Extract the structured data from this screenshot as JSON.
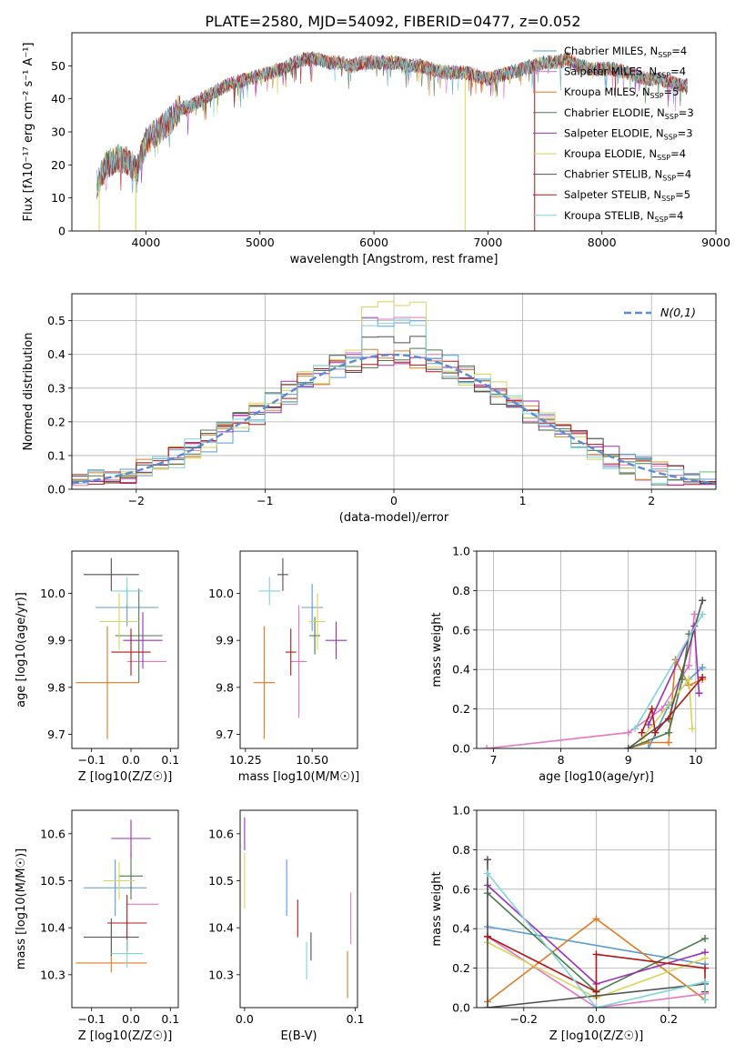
{
  "figure_title": "PLATE=2580, MJD=54092, FIBERID=0477, z=0.052",
  "colors": {
    "Chabrier MILES": "#5b9bd5",
    "Salpeter MILES": "#e377c2",
    "Kroupa MILES": "#e07b22",
    "Chabrier ELODIE": "#4c7a4c",
    "Salpeter ELODIE": "#9b30b5",
    "Kroupa ELODIE": "#d6d65a",
    "Chabrier STELIB": "#505050",
    "Salpeter STELIB": "#b01818",
    "Kroupa STELIB": "#7fd4da",
    "normal_fit": "#5b8ad6",
    "grid": "#b0b0b0"
  },
  "legend_entries": [
    {
      "key": "Chabrier MILES",
      "text": "Chabrier MILES, N",
      "sub": "SSP",
      "val": "=4"
    },
    {
      "key": "Salpeter MILES",
      "text": "Salpeter MILES, N",
      "sub": "SSP",
      "val": "=4"
    },
    {
      "key": "Kroupa MILES",
      "text": "Kroupa MILES, N",
      "sub": "SSP",
      "val": "=5"
    },
    {
      "key": "Chabrier ELODIE",
      "text": "Chabrier ELODIE, N",
      "sub": "SSP",
      "val": "=3"
    },
    {
      "key": "Salpeter ELODIE",
      "text": "Salpeter ELODIE, N",
      "sub": "SSP",
      "val": "=3"
    },
    {
      "key": "Kroupa ELODIE",
      "text": "Kroupa ELODIE, N",
      "sub": "SSP",
      "val": "=4"
    },
    {
      "key": "Chabrier STELIB",
      "text": "Chabrier STELIB, N",
      "sub": "SSP",
      "val": "=4"
    },
    {
      "key": "Salpeter STELIB",
      "text": "Salpeter STELIB, N",
      "sub": "SSP",
      "val": "=5"
    },
    {
      "key": "Kroupa STELIB",
      "text": "Kroupa STELIB, N",
      "sub": "SSP",
      "val": "=4"
    }
  ],
  "chart_data": [
    {
      "id": "spectrum",
      "type": "line",
      "xlabel": "wavelength [Angstrom, rest frame]",
      "ylabel": "Flux [fλ10⁻¹⁷ erg cm⁻² s⁻¹ A⁻¹]",
      "xlim": [
        3350,
        9000
      ],
      "ylim": [
        0,
        60
      ],
      "xticks": [
        4000,
        5000,
        6000,
        7000,
        8000,
        9000
      ],
      "yticks": [
        0,
        10,
        20,
        30,
        40,
        50
      ],
      "continuum": {
        "x": [
          3570,
          3650,
          3750,
          3850,
          3920,
          4000,
          4100,
          4200,
          4300,
          4400,
          4500,
          4600,
          4700,
          4800,
          4900,
          5000,
          5100,
          5200,
          5300,
          5400,
          5500,
          5600,
          5700,
          5800,
          5900,
          6000,
          6100,
          6200,
          6300,
          6400,
          6500,
          6600,
          6700,
          6800,
          6900,
          7000,
          7100,
          7200,
          7300,
          7400,
          7500,
          7600,
          7700,
          7800,
          7900,
          8000,
          8100,
          8200,
          8300,
          8400,
          8500,
          8600,
          8700,
          8750
        ],
        "y": [
          14,
          20,
          22,
          21,
          18,
          27,
          30,
          33,
          37,
          38,
          40,
          42,
          44,
          45,
          46,
          47,
          48,
          49,
          51,
          52,
          52,
          51,
          51,
          50,
          51,
          51,
          51,
          51,
          50,
          50,
          49,
          48,
          48,
          48,
          47,
          46,
          47,
          48,
          49,
          50,
          51,
          51,
          52,
          50,
          49,
          49,
          49,
          48,
          47,
          46,
          46,
          45,
          44,
          44
        ]
      },
      "spikes": [
        {
          "x": 3590,
          "y": 0,
          "series": "Kroupa ELODIE"
        },
        {
          "x": 3910,
          "y": 0,
          "series": "Kroupa ELODIE"
        },
        {
          "x": 6800,
          "y": 0,
          "series": "Kroupa ELODIE"
        },
        {
          "x": 7410,
          "y": 0,
          "series": "Salpeter STELIB"
        }
      ]
    },
    {
      "id": "residuals",
      "type": "histogram",
      "xlabel": "(data-model)/error",
      "ylabel": "Normed distribution",
      "xlim": [
        -2.5,
        2.5
      ],
      "ylim": [
        0,
        0.58
      ],
      "xticks": [
        -2,
        -1,
        0,
        1,
        2
      ],
      "yticks": [
        0,
        0.1,
        0.2,
        0.3,
        0.4,
        0.5
      ],
      "bin_width": 0.125,
      "legend": "N(0,1)",
      "peak_values": {
        "Chabrier MILES": 0.51,
        "Salpeter MILES": 0.53,
        "Kroupa ELODIE": 0.56,
        "Chabrier STELIB": 0.46,
        "Kroupa STELIB": 0.51
      }
    },
    {
      "id": "age_vs_Z",
      "type": "scatter-errorbar",
      "xlabel": "Z [log10(Z/Z☉)]",
      "ylabel": "age  [log10(age/yr)]",
      "xlim": [
        -0.15,
        0.12
      ],
      "ylim": [
        9.67,
        10.09
      ],
      "xticks": [
        -0.1,
        0.0,
        0.1
      ],
      "yticks": [
        9.7,
        9.8,
        9.9,
        10.0
      ],
      "points": [
        {
          "series": "Chabrier MILES",
          "x": -0.01,
          "y": 9.97,
          "xerr": 0.08,
          "yerr": 0.04
        },
        {
          "series": "Salpeter MILES",
          "x": 0.04,
          "y": 9.855,
          "xerr": 0.05,
          "yerr": 0.0
        },
        {
          "series": "Kroupa MILES",
          "x": -0.06,
          "y": 9.81,
          "xerr": 0.08,
          "yerr": 0.12
        },
        {
          "series": "Chabrier ELODIE",
          "x": 0.02,
          "y": 9.91,
          "xerr": 0.06,
          "yerr": 0.1
        },
        {
          "series": "Salpeter ELODIE",
          "x": 0.03,
          "y": 9.9,
          "xerr": 0.05,
          "yerr": 0.06
        },
        {
          "series": "Kroupa ELODIE",
          "x": -0.03,
          "y": 9.94,
          "xerr": 0.05,
          "yerr": 0.06
        },
        {
          "series": "Chabrier STELIB",
          "x": -0.05,
          "y": 10.04,
          "xerr": 0.07,
          "yerr": 0.035
        },
        {
          "series": "Salpeter STELIB",
          "x": 0.0,
          "y": 9.875,
          "xerr": 0.05,
          "yerr": 0.05
        },
        {
          "series": "Kroupa STELIB",
          "x": -0.01,
          "y": 10.005,
          "xerr": 0.04,
          "yerr": 0.03
        }
      ]
    },
    {
      "id": "age_vs_mass",
      "type": "scatter-errorbar",
      "xlabel": "mass [log10(M/M☉)]",
      "ylabel": "",
      "xlim": [
        10.23,
        10.67
      ],
      "ylim": [
        9.67,
        10.09
      ],
      "xticks": [
        10.25,
        10.5
      ],
      "yticks": [
        9.7,
        9.8,
        9.9,
        10.0
      ],
      "points": [
        {
          "series": "Chabrier MILES",
          "x": 10.5,
          "y": 9.97,
          "xerr": 0.04,
          "yerr": 0.05
        },
        {
          "series": "Salpeter MILES",
          "x": 10.45,
          "y": 9.855,
          "xerr": 0.03,
          "yerr": 0.12
        },
        {
          "series": "Kroupa MILES",
          "x": 10.32,
          "y": 9.81,
          "xerr": 0.04,
          "yerr": 0.12
        },
        {
          "series": "Chabrier ELODIE",
          "x": 10.51,
          "y": 9.91,
          "xerr": 0.02,
          "yerr": 0.04
        },
        {
          "series": "Salpeter ELODIE",
          "x": 10.59,
          "y": 9.9,
          "xerr": 0.04,
          "yerr": 0.04
        },
        {
          "series": "Kroupa ELODIE",
          "x": 10.52,
          "y": 9.94,
          "xerr": 0.03,
          "yerr": 0.06
        },
        {
          "series": "Chabrier STELIB",
          "x": 10.39,
          "y": 10.04,
          "xerr": 0.02,
          "yerr": 0.035
        },
        {
          "series": "Salpeter STELIB",
          "x": 10.42,
          "y": 9.875,
          "xerr": 0.02,
          "yerr": 0.05
        },
        {
          "series": "Kroupa STELIB",
          "x": 10.34,
          "y": 10.005,
          "xerr": 0.04,
          "yerr": 0.03
        }
      ]
    },
    {
      "id": "massweight_vs_age",
      "type": "line",
      "xlabel": "age  [log10(age/yr)]",
      "ylabel": "mass weight",
      "xlim": [
        6.75,
        10.3
      ],
      "ylim": [
        0,
        1
      ],
      "xticks": [
        7,
        8,
        9,
        10
      ],
      "yticks": [
        0.0,
        0.2,
        0.4,
        0.6,
        0.8,
        1.0
      ],
      "series": [
        {
          "name": "Salpeter MILES",
          "x": [
            6.9,
            9.0,
            9.5,
            9.9,
            9.98
          ],
          "y": [
            0.0,
            0.08,
            0.2,
            0.42,
            0.68
          ]
        },
        {
          "name": "Kroupa MILES",
          "x": [
            9.0,
            9.3,
            9.6,
            9.7,
            9.9,
            10.1
          ],
          "y": [
            0.0,
            0.03,
            0.03,
            0.45,
            0.32,
            0.35
          ]
        },
        {
          "name": "Chabrier MILES",
          "x": [
            9.3,
            9.6,
            9.9,
            10.1
          ],
          "y": [
            0.0,
            0.22,
            0.35,
            0.41
          ]
        },
        {
          "name": "Chabrier ELODIE",
          "x": [
            9.0,
            9.6,
            9.8,
            9.9
          ],
          "y": [
            0.0,
            0.08,
            0.35,
            0.58
          ]
        },
        {
          "name": "Salpeter ELODIE",
          "x": [
            9.3,
            9.98,
            10.05
          ],
          "y": [
            0.12,
            0.62,
            0.28
          ]
        },
        {
          "name": "Kroupa ELODIE",
          "x": [
            9.2,
            9.9,
            9.95
          ],
          "y": [
            0.05,
            0.35,
            0.1
          ]
        },
        {
          "name": "Chabrier STELIB",
          "x": [
            9.0,
            9.6,
            10.1
          ],
          "y": [
            0.0,
            0.15,
            0.75
          ]
        },
        {
          "name": "Salpeter STELIB",
          "x": [
            9.2,
            9.35,
            9.4,
            10.1
          ],
          "y": [
            0.08,
            0.2,
            0.08,
            0.36
          ]
        },
        {
          "name": "Kroupa STELIB",
          "x": [
            9.1,
            10.1
          ],
          "y": [
            0.1,
            0.68
          ]
        }
      ]
    },
    {
      "id": "mass_vs_Z",
      "type": "scatter-errorbar",
      "xlabel": "Z [log10(Z/Z☉)]",
      "ylabel": "mass [log10(M/M☉)]",
      "xlim": [
        -0.15,
        0.12
      ],
      "ylim": [
        10.23,
        10.65
      ],
      "xticks": [
        -0.1,
        0.0,
        0.1
      ],
      "yticks": [
        10.3,
        10.4,
        10.5,
        10.6
      ],
      "points": [
        {
          "series": "Chabrier MILES",
          "x": -0.04,
          "y": 10.485,
          "xerr": 0.08,
          "yerr": 0.06
        },
        {
          "series": "Salpeter MILES",
          "x": 0.03,
          "y": 10.45,
          "xerr": 0.04,
          "yerr": 0.0
        },
        {
          "series": "Kroupa MILES",
          "x": -0.05,
          "y": 10.325,
          "xerr": 0.09,
          "yerr": 0.02
        },
        {
          "series": "Chabrier ELODIE",
          "x": 0.0,
          "y": 10.51,
          "xerr": 0.03,
          "yerr": 0.05
        },
        {
          "series": "Salpeter ELODIE",
          "x": 0.0,
          "y": 10.59,
          "xerr": 0.05,
          "yerr": 0.04
        },
        {
          "series": "Kroupa ELODIE",
          "x": -0.03,
          "y": 10.5,
          "xerr": 0.04,
          "yerr": 0.04
        },
        {
          "series": "Chabrier STELIB",
          "x": -0.05,
          "y": 10.38,
          "xerr": 0.07,
          "yerr": 0.04
        },
        {
          "series": "Salpeter STELIB",
          "x": -0.01,
          "y": 10.41,
          "xerr": 0.05,
          "yerr": 0.06
        },
        {
          "series": "Kroupa STELIB",
          "x": -0.01,
          "y": 10.345,
          "xerr": 0.04,
          "yerr": 0.03
        }
      ]
    },
    {
      "id": "mass_vs_EBV",
      "type": "scatter-errorbar",
      "xlabel": "E(B-V)",
      "ylabel": "",
      "xlim": [
        -0.004,
        0.102
      ],
      "ylim": [
        10.23,
        10.65
      ],
      "xticks": [
        0.0,
        0.1
      ],
      "yticks": [
        10.3,
        10.4,
        10.5,
        10.6
      ],
      "points": [
        {
          "series": "Chabrier MILES",
          "x": 0.038,
          "y": 10.485,
          "yerr": 0.06
        },
        {
          "series": "Salpeter MILES",
          "x": 0.096,
          "y": 10.42,
          "yerr": 0.055
        },
        {
          "series": "Kroupa MILES",
          "x": 0.093,
          "y": 10.3,
          "yerr": 0.05
        },
        {
          "series": "Salpeter ELODIE",
          "x": 0.0,
          "y": 10.6,
          "yerr": 0.035
        },
        {
          "series": "Kroupa ELODIE",
          "x": 0.0,
          "y": 10.5,
          "yerr": 0.06
        },
        {
          "series": "Chabrier STELIB",
          "x": 0.06,
          "y": 10.36,
          "yerr": 0.03
        },
        {
          "series": "Salpeter STELIB",
          "x": 0.048,
          "y": 10.42,
          "yerr": 0.04
        },
        {
          "series": "Kroupa STELIB",
          "x": 0.056,
          "y": 10.33,
          "yerr": 0.04
        }
      ]
    },
    {
      "id": "massweight_vs_Z",
      "type": "line",
      "xlabel": "Z [log10(Z/Z☉)]",
      "ylabel": "mass weight",
      "xlim": [
        -0.33,
        0.33
      ],
      "ylim": [
        0,
        1
      ],
      "xticks": [
        -0.2,
        0.0,
        0.2
      ],
      "yticks": [
        0.0,
        0.2,
        0.4,
        0.6,
        0.8,
        1.0
      ],
      "series": [
        {
          "name": "Chabrier MILES",
          "x": [
            -0.3,
            0.3
          ],
          "y": [
            0.41,
            0.22
          ]
        },
        {
          "name": "Kroupa MILES",
          "x": [
            -0.3,
            0.0,
            0.3
          ],
          "y": [
            0.03,
            0.45,
            0.04
          ]
        },
        {
          "name": "Salpeter MILES",
          "x": [
            -0.3,
            0.0,
            0.3
          ],
          "y": [
            0.36,
            0.0,
            0.07
          ]
        },
        {
          "name": "Chabrier ELODIE",
          "x": [
            -0.3,
            0.0,
            0.3
          ],
          "y": [
            0.58,
            0.08,
            0.35
          ]
        },
        {
          "name": "Salpeter ELODIE",
          "x": [
            -0.3,
            0.0,
            0.3
          ],
          "y": [
            0.62,
            0.12,
            0.28
          ]
        },
        {
          "name": "Kroupa ELODIE",
          "x": [
            -0.3,
            0.0,
            0.3
          ],
          "y": [
            0.33,
            0.05,
            0.25
          ]
        },
        {
          "name": "Chabrier STELIB",
          "x": [
            -0.3,
            -0.3,
            0.0,
            0.3
          ],
          "y": [
            0.75,
            0.0,
            0.06,
            0.12
          ]
        },
        {
          "name": "Salpeter STELIB",
          "x": [
            -0.3,
            0.0,
            0.0,
            0.3,
            0.3
          ],
          "y": [
            0.36,
            0.08,
            0.27,
            0.2,
            0.08
          ]
        },
        {
          "name": "Kroupa STELIB",
          "x": [
            -0.3,
            0.0,
            0.3,
            0.3
          ],
          "y": [
            0.68,
            0.0,
            0.13,
            0.04
          ]
        }
      ]
    }
  ]
}
